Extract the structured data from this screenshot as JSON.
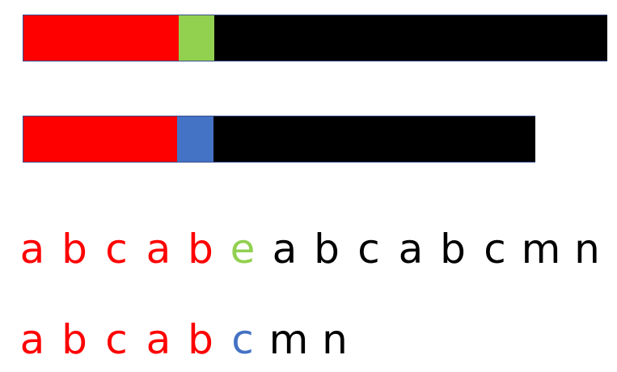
{
  "colors": {
    "match": "#ff0000",
    "text_mismatch": "#92d050",
    "pattern_mismatch": "#4472c4",
    "rest": "#000000"
  },
  "text_bar": {
    "segments": [
      {
        "role": "matched-prefix",
        "color": "#ff0000"
      },
      {
        "role": "mismatch",
        "color": "#92d050"
      },
      {
        "role": "remaining",
        "color": "#000000"
      }
    ]
  },
  "pattern_bar": {
    "segments": [
      {
        "role": "matched-prefix",
        "color": "#ff0000"
      },
      {
        "role": "mismatch",
        "color": "#4472c4"
      },
      {
        "role": "remaining",
        "color": "#000000"
      }
    ]
  },
  "text_string": {
    "chars": [
      {
        "c": "a",
        "color": "#ff0000"
      },
      {
        "c": "b",
        "color": "#ff0000"
      },
      {
        "c": "c",
        "color": "#ff0000"
      },
      {
        "c": "a",
        "color": "#ff0000"
      },
      {
        "c": "b",
        "color": "#ff0000"
      },
      {
        "c": "e",
        "color": "#92d050"
      },
      {
        "c": "a",
        "color": "#000000"
      },
      {
        "c": "b",
        "color": "#000000"
      },
      {
        "c": "c",
        "color": "#000000"
      },
      {
        "c": "a",
        "color": "#000000"
      },
      {
        "c": "b",
        "color": "#000000"
      },
      {
        "c": "c",
        "color": "#000000"
      },
      {
        "c": "m",
        "color": "#000000"
      },
      {
        "c": "n",
        "color": "#000000"
      }
    ]
  },
  "pattern_string": {
    "chars": [
      {
        "c": "a",
        "color": "#ff0000"
      },
      {
        "c": "b",
        "color": "#ff0000"
      },
      {
        "c": "c",
        "color": "#ff0000"
      },
      {
        "c": "a",
        "color": "#ff0000"
      },
      {
        "c": "b",
        "color": "#ff0000"
      },
      {
        "c": "c",
        "color": "#4472c4"
      },
      {
        "c": "m",
        "color": "#000000"
      },
      {
        "c": "n",
        "color": "#000000"
      }
    ]
  }
}
